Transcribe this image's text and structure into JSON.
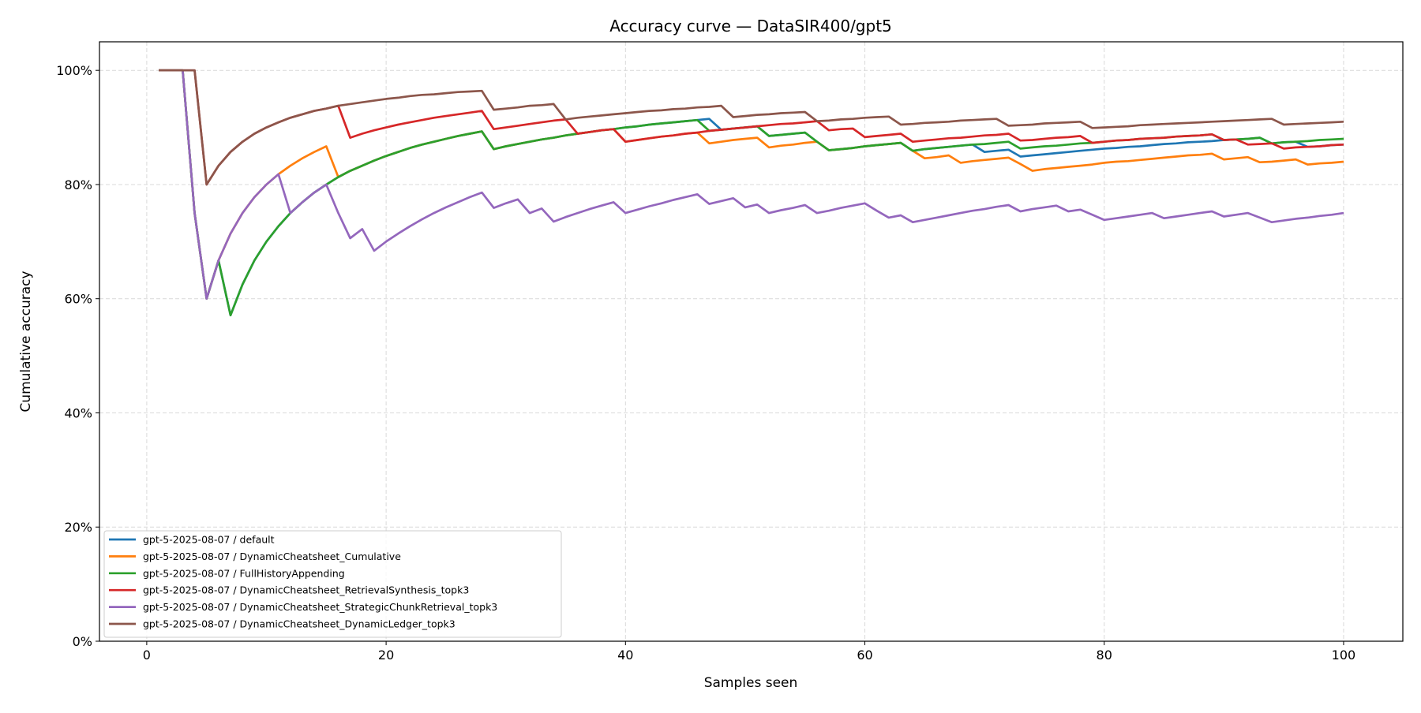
{
  "chart_data": {
    "type": "line",
    "title": "Accuracy curve — DataSIR400/gpt5",
    "xlabel": "Samples seen",
    "ylabel": "Cumulative accuracy",
    "xlim": [
      -3.95,
      104.95
    ],
    "ylim": [
      0,
      105
    ],
    "x_ticks": [
      0,
      20,
      40,
      60,
      80,
      100
    ],
    "x_tick_labels": [
      "0",
      "20",
      "40",
      "60",
      "80",
      "100"
    ],
    "y_ticks": [
      0,
      20,
      40,
      60,
      80,
      100
    ],
    "y_tick_labels": [
      "0%",
      "20%",
      "40%",
      "60%",
      "80%",
      "100%"
    ],
    "grid": true,
    "legend_position": "lower-left",
    "x_start": 1,
    "series": [
      {
        "name": "gpt-5-2025-08-07 / default",
        "color": "#1f77b4",
        "values": [
          100,
          100,
          100,
          75.0,
          60.0,
          66.7,
          57.1,
          62.5,
          66.7,
          70.0,
          72.7,
          75.0,
          76.9,
          78.6,
          80.0,
          81.3,
          82.4,
          83.3,
          84.2,
          85.0,
          85.7,
          86.4,
          87.0,
          87.5,
          88.0,
          88.5,
          88.9,
          89.3,
          86.2,
          86.7,
          87.1,
          87.5,
          87.9,
          88.2,
          88.6,
          88.9,
          89.2,
          89.5,
          89.7,
          90.0,
          90.2,
          90.5,
          90.7,
          90.9,
          91.1,
          91.3,
          91.5,
          89.6,
          89.8,
          90.0,
          90.2,
          88.5,
          88.7,
          88.9,
          89.1,
          87.5,
          86.0,
          86.2,
          86.4,
          86.7,
          86.9,
          87.1,
          87.3,
          85.9,
          86.2,
          86.4,
          86.6,
          86.8,
          87.0,
          85.7,
          85.9,
          86.1,
          84.9,
          85.1,
          85.3,
          85.5,
          85.7,
          85.9,
          86.1,
          86.3,
          86.4,
          86.6,
          86.7,
          86.9,
          87.1,
          87.2,
          87.4,
          87.5,
          87.6,
          87.8,
          87.9,
          88.0,
          88.2,
          87.2,
          87.4,
          87.5,
          86.6,
          86.7,
          86.9,
          87.0
        ]
      },
      {
        "name": "gpt-5-2025-08-07 / DynamicCheatsheet_Cumulative",
        "color": "#ff7f0e",
        "values": [
          100,
          100,
          100,
          75.0,
          60.0,
          66.7,
          71.4,
          75.0,
          77.8,
          80.0,
          81.8,
          83.3,
          84.6,
          85.7,
          86.7,
          81.3,
          82.4,
          83.3,
          84.2,
          85.0,
          85.7,
          86.4,
          87.0,
          87.5,
          88.0,
          88.5,
          88.9,
          89.3,
          86.2,
          86.7,
          87.1,
          87.5,
          87.9,
          88.2,
          88.6,
          88.9,
          89.2,
          89.5,
          89.7,
          87.5,
          87.8,
          88.1,
          88.4,
          88.6,
          88.9,
          89.1,
          87.2,
          87.5,
          87.8,
          88.0,
          88.2,
          86.5,
          86.8,
          87.0,
          87.3,
          87.5,
          86.0,
          86.2,
          86.4,
          86.7,
          86.9,
          87.1,
          87.3,
          85.9,
          84.6,
          84.8,
          85.1,
          83.8,
          84.1,
          84.3,
          84.5,
          84.7,
          83.6,
          82.4,
          82.7,
          82.9,
          83.1,
          83.3,
          83.5,
          83.8,
          84.0,
          84.1,
          84.3,
          84.5,
          84.7,
          84.9,
          85.1,
          85.2,
          85.4,
          84.4,
          84.6,
          84.8,
          83.9,
          84.0,
          84.2,
          84.4,
          83.5,
          83.7,
          83.8,
          84.0
        ]
      },
      {
        "name": "gpt-5-2025-08-07 / FullHistoryAppending",
        "color": "#2ca02c",
        "values": [
          100,
          100,
          100,
          75.0,
          60.0,
          66.7,
          57.1,
          62.5,
          66.7,
          70.0,
          72.7,
          75.0,
          76.9,
          78.6,
          80.0,
          81.3,
          82.4,
          83.3,
          84.2,
          85.0,
          85.7,
          86.4,
          87.0,
          87.5,
          88.0,
          88.5,
          88.9,
          89.3,
          86.2,
          86.7,
          87.1,
          87.5,
          87.9,
          88.2,
          88.6,
          88.9,
          89.2,
          89.5,
          89.7,
          90.0,
          90.2,
          90.5,
          90.7,
          90.9,
          91.1,
          91.3,
          89.4,
          89.6,
          89.8,
          90.0,
          90.2,
          88.5,
          88.7,
          88.9,
          89.1,
          87.5,
          86.0,
          86.2,
          86.4,
          86.7,
          86.9,
          87.1,
          87.3,
          85.9,
          86.2,
          86.4,
          86.6,
          86.8,
          87.0,
          87.1,
          87.3,
          87.5,
          86.3,
          86.5,
          86.7,
          86.8,
          87.0,
          87.2,
          87.3,
          87.5,
          87.7,
          87.8,
          88.0,
          88.1,
          88.2,
          88.4,
          88.5,
          88.6,
          88.8,
          87.8,
          87.9,
          88.0,
          88.2,
          87.2,
          87.4,
          87.5,
          87.6,
          87.8,
          87.9,
          88.0
        ]
      },
      {
        "name": "gpt-5-2025-08-07 / DynamicCheatsheet_RetrievalSynthesis_topk3",
        "color": "#d62728",
        "values": [
          100,
          100,
          100,
          100,
          80.0,
          83.3,
          85.7,
          87.5,
          88.9,
          90.0,
          90.9,
          91.7,
          92.3,
          92.9,
          93.3,
          93.8,
          88.2,
          88.9,
          89.5,
          90.0,
          90.5,
          90.9,
          91.3,
          91.7,
          92.0,
          92.3,
          92.6,
          92.9,
          89.7,
          90.0,
          90.3,
          90.6,
          90.9,
          91.2,
          91.4,
          88.9,
          89.2,
          89.5,
          89.7,
          87.5,
          87.8,
          88.1,
          88.4,
          88.6,
          88.9,
          89.1,
          89.4,
          89.6,
          89.8,
          90.0,
          90.2,
          90.4,
          90.6,
          90.7,
          90.9,
          91.1,
          89.5,
          89.7,
          89.8,
          88.3,
          88.5,
          88.7,
          88.9,
          87.5,
          87.7,
          87.9,
          88.1,
          88.2,
          88.4,
          88.6,
          88.7,
          88.9,
          87.7,
          87.8,
          88.0,
          88.2,
          88.3,
          88.5,
          87.3,
          87.5,
          87.7,
          87.8,
          88.0,
          88.1,
          88.2,
          88.4,
          88.5,
          88.6,
          88.8,
          87.8,
          87.9,
          87.0,
          87.1,
          87.2,
          86.3,
          86.5,
          86.6,
          86.7,
          86.9,
          87.0
        ]
      },
      {
        "name": "gpt-5-2025-08-07 / DynamicCheatsheet_StrategicChunkRetrieval_topk3",
        "color": "#9467bd",
        "values": [
          100,
          100,
          100,
          75.0,
          60.0,
          66.7,
          71.4,
          75.0,
          77.8,
          80.0,
          81.8,
          75.0,
          76.9,
          78.6,
          80.0,
          75.0,
          70.6,
          72.2,
          68.4,
          70.0,
          71.4,
          72.7,
          73.9,
          75.0,
          76.0,
          76.9,
          77.8,
          78.6,
          75.9,
          76.7,
          77.4,
          75.0,
          75.8,
          73.5,
          74.3,
          75.0,
          75.7,
          76.3,
          76.9,
          75.0,
          75.6,
          76.2,
          76.7,
          77.3,
          77.8,
          78.3,
          76.6,
          77.1,
          77.6,
          76.0,
          76.5,
          75.0,
          75.5,
          75.9,
          76.4,
          75.0,
          75.4,
          75.9,
          76.3,
          76.7,
          75.4,
          74.2,
          74.6,
          73.4,
          73.8,
          74.2,
          74.6,
          75.0,
          75.4,
          75.7,
          76.1,
          76.4,
          75.3,
          75.7,
          76.0,
          76.3,
          75.3,
          75.6,
          74.7,
          73.8,
          74.1,
          74.4,
          74.7,
          75.0,
          74.1,
          74.4,
          74.7,
          75.0,
          75.3,
          74.4,
          74.7,
          75.0,
          74.2,
          73.4,
          73.7,
          74.0,
          74.2,
          74.5,
          74.7,
          75.0
        ]
      },
      {
        "name": "gpt-5-2025-08-07 / DynamicCheatsheet_DynamicLedger_topk3",
        "color": "#8c564b",
        "values": [
          100,
          100,
          100,
          100,
          80.0,
          83.3,
          85.7,
          87.5,
          88.9,
          90.0,
          90.9,
          91.7,
          92.3,
          92.9,
          93.3,
          93.8,
          94.1,
          94.4,
          94.7,
          95.0,
          95.2,
          95.5,
          95.7,
          95.8,
          96.0,
          96.2,
          96.3,
          96.4,
          93.1,
          93.3,
          93.5,
          93.8,
          93.9,
          94.1,
          91.4,
          91.7,
          91.9,
          92.1,
          92.3,
          92.5,
          92.7,
          92.9,
          93.0,
          93.2,
          93.3,
          93.5,
          93.6,
          93.8,
          91.8,
          92.0,
          92.2,
          92.3,
          92.5,
          92.6,
          92.7,
          91.1,
          91.2,
          91.4,
          91.5,
          91.7,
          91.8,
          91.9,
          90.5,
          90.6,
          90.8,
          90.9,
          91.0,
          91.2,
          91.3,
          91.4,
          91.5,
          90.3,
          90.4,
          90.5,
          90.7,
          90.8,
          90.9,
          91.0,
          89.9,
          90.0,
          90.1,
          90.2,
          90.4,
          90.5,
          90.6,
          90.7,
          90.8,
          90.9,
          91.0,
          91.1,
          91.2,
          91.3,
          91.4,
          91.5,
          90.5,
          90.6,
          90.7,
          90.8,
          90.9,
          91.0
        ]
      }
    ]
  }
}
